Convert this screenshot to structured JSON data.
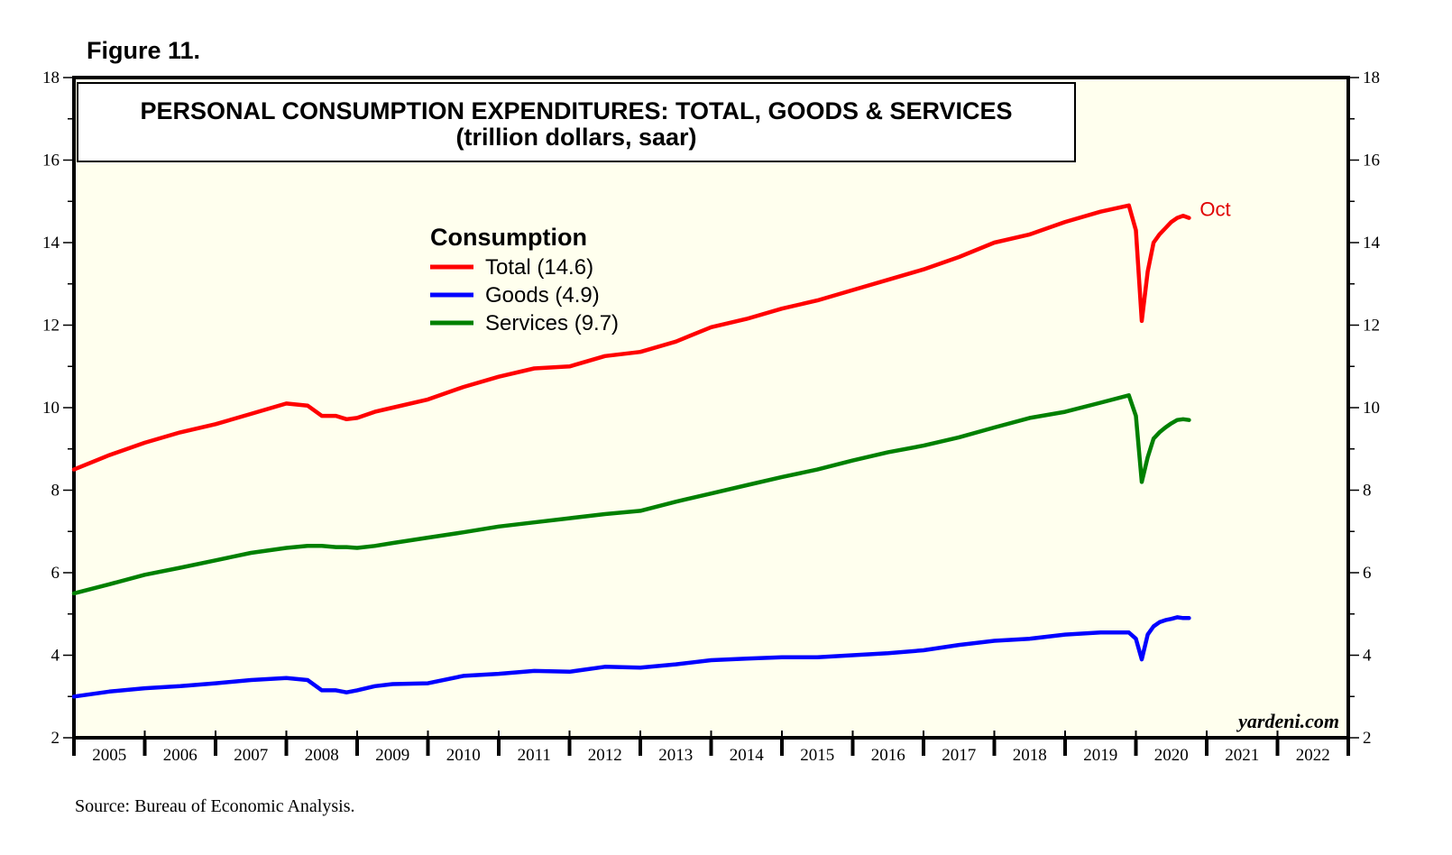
{
  "figure_label": "Figure 11.",
  "source": "Source: Bureau of Economic Analysis.",
  "brand": "yardeni.com",
  "colors": {
    "plot_background": "#ffffee",
    "total": "#ff0000",
    "goods": "#0000ff",
    "services": "#008000",
    "annotation": "#e00000"
  },
  "chart_data": {
    "type": "line",
    "title": "PERSONAL CONSUMPTION EXPENDITURES: TOTAL, GOODS & SERVICES",
    "subtitle": "(trillion dollars, saar)",
    "legend_title": "Consumption",
    "legend_placement": "upper-left-center",
    "grid": false,
    "y_axis_left": true,
    "y_axis_right": true,
    "ylim": [
      2,
      18
    ],
    "y_ticks": [
      2,
      4,
      6,
      8,
      10,
      12,
      14,
      16,
      18
    ],
    "x_range": [
      2005,
      2023
    ],
    "x_tick_labels": [
      "2005",
      "2006",
      "2007",
      "2008",
      "2009",
      "2010",
      "2011",
      "2012",
      "2013",
      "2014",
      "2015",
      "2016",
      "2017",
      "2018",
      "2019",
      "2020",
      "2021",
      "2022"
    ],
    "annotation": "Oct",
    "series": [
      {
        "name": "Total (14.6)",
        "color": "#ff0000",
        "x": [
          2005.0,
          2005.5,
          2006.0,
          2006.5,
          2007.0,
          2007.5,
          2008.0,
          2008.3,
          2008.5,
          2008.7,
          2008.85,
          2009.0,
          2009.25,
          2009.5,
          2010.0,
          2010.5,
          2011.0,
          2011.5,
          2012.0,
          2012.5,
          2013.0,
          2013.5,
          2014.0,
          2014.5,
          2015.0,
          2015.5,
          2016.0,
          2016.5,
          2017.0,
          2017.5,
          2018.0,
          2018.5,
          2019.0,
          2019.5,
          2019.9,
          2020.0,
          2020.083,
          2020.167,
          2020.25,
          2020.333,
          2020.417,
          2020.5,
          2020.583,
          2020.667,
          2020.75
        ],
        "y": [
          8.5,
          8.85,
          9.15,
          9.4,
          9.6,
          9.85,
          10.1,
          10.05,
          9.8,
          9.8,
          9.72,
          9.75,
          9.9,
          10.0,
          10.2,
          10.5,
          10.75,
          10.95,
          11.0,
          11.25,
          11.35,
          11.6,
          11.95,
          12.15,
          12.4,
          12.6,
          12.85,
          13.1,
          13.35,
          13.65,
          14.0,
          14.2,
          14.5,
          14.75,
          14.9,
          14.3,
          12.1,
          13.3,
          14.0,
          14.2,
          14.35,
          14.5,
          14.6,
          14.65,
          14.6
        ]
      },
      {
        "name": "Goods (4.9)",
        "color": "#0000ff",
        "x": [
          2005.0,
          2005.5,
          2006.0,
          2006.5,
          2007.0,
          2007.5,
          2008.0,
          2008.3,
          2008.5,
          2008.7,
          2008.85,
          2009.0,
          2009.25,
          2009.5,
          2010.0,
          2010.5,
          2011.0,
          2011.5,
          2012.0,
          2012.5,
          2013.0,
          2013.5,
          2014.0,
          2014.5,
          2015.0,
          2015.5,
          2016.0,
          2016.5,
          2017.0,
          2017.5,
          2018.0,
          2018.5,
          2019.0,
          2019.5,
          2019.9,
          2020.0,
          2020.083,
          2020.167,
          2020.25,
          2020.333,
          2020.417,
          2020.5,
          2020.583,
          2020.667,
          2020.75
        ],
        "y": [
          3.0,
          3.12,
          3.2,
          3.25,
          3.32,
          3.4,
          3.45,
          3.4,
          3.15,
          3.15,
          3.1,
          3.15,
          3.25,
          3.3,
          3.32,
          3.5,
          3.55,
          3.62,
          3.6,
          3.72,
          3.7,
          3.78,
          3.88,
          3.92,
          3.95,
          3.95,
          4.0,
          4.05,
          4.12,
          4.25,
          4.35,
          4.4,
          4.5,
          4.55,
          4.55,
          4.4,
          3.9,
          4.5,
          4.7,
          4.8,
          4.85,
          4.88,
          4.92,
          4.9,
          4.9
        ]
      },
      {
        "name": "Services (9.7)",
        "color": "#008000",
        "x": [
          2005.0,
          2005.5,
          2006.0,
          2006.5,
          2007.0,
          2007.5,
          2008.0,
          2008.3,
          2008.5,
          2008.7,
          2008.85,
          2009.0,
          2009.25,
          2009.5,
          2010.0,
          2010.5,
          2011.0,
          2011.5,
          2012.0,
          2012.5,
          2013.0,
          2013.5,
          2014.0,
          2014.5,
          2015.0,
          2015.5,
          2016.0,
          2016.5,
          2017.0,
          2017.5,
          2018.0,
          2018.5,
          2019.0,
          2019.5,
          2019.9,
          2020.0,
          2020.083,
          2020.167,
          2020.25,
          2020.333,
          2020.417,
          2020.5,
          2020.583,
          2020.667,
          2020.75
        ],
        "y": [
          5.5,
          5.72,
          5.95,
          6.12,
          6.3,
          6.48,
          6.6,
          6.65,
          6.65,
          6.62,
          6.62,
          6.6,
          6.65,
          6.72,
          6.85,
          6.98,
          7.12,
          7.22,
          7.32,
          7.42,
          7.5,
          7.72,
          7.92,
          8.12,
          8.32,
          8.5,
          8.72,
          8.92,
          9.08,
          9.28,
          9.52,
          9.75,
          9.9,
          10.12,
          10.3,
          9.8,
          8.2,
          8.8,
          9.25,
          9.4,
          9.52,
          9.62,
          9.7,
          9.72,
          9.7
        ]
      }
    ]
  }
}
